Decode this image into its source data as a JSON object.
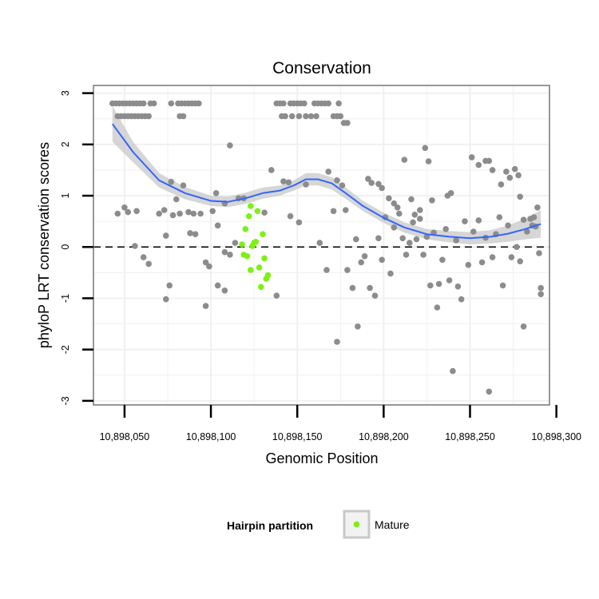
{
  "chart_data": {
    "type": "scatter",
    "title": "Conservation",
    "xlabel": "Genomic Position",
    "ylabel": "phyloP LRT conservation scores",
    "xlim": [
      10898032,
      10898296
    ],
    "ylim": [
      -3.08,
      3.15
    ],
    "x_ticks": [
      10898050,
      10898100,
      10898150,
      10898200,
      10898250,
      10898300
    ],
    "x_tick_labels": [
      "10,898,050",
      "10,898,100",
      "10,898,150",
      "10,898,200",
      "10,898,250",
      "10,898,300"
    ],
    "y_ticks": [
      3,
      2,
      1,
      0,
      -1,
      -2,
      -3
    ],
    "y_tick_labels": [
      "3",
      "2",
      "1",
      "0",
      "-1",
      "-2",
      "-3"
    ],
    "grid": true,
    "reference_line": {
      "y": 0,
      "style": "dashed"
    },
    "legend": {
      "title": "Hairpin partition",
      "entries": [
        {
          "label": "Mature",
          "color": "#7ef018"
        }
      ],
      "position": "bottom"
    },
    "colors": {
      "other": "#8c8c8c",
      "mature": "#7ef018",
      "smooth": "#3366ff",
      "ribbon": "#c8c8c8",
      "panel_border": "#7f7f7f",
      "grid": "#f0f0f0"
    },
    "series": [
      {
        "name": "Other",
        "color": "#8c8c8c",
        "points": [
          [
            10898043,
            2.8
          ],
          [
            10898045,
            2.8
          ],
          [
            10898047,
            2.8
          ],
          [
            10898049,
            2.8
          ],
          [
            10898051,
            2.8
          ],
          [
            10898053,
            2.8
          ],
          [
            10898055,
            2.8
          ],
          [
            10898057,
            2.8
          ],
          [
            10898059,
            2.8
          ],
          [
            10898061,
            2.8
          ],
          [
            10898065,
            2.8
          ],
          [
            10898067,
            2.8
          ],
          [
            10898077,
            2.8
          ],
          [
            10898081,
            2.8
          ],
          [
            10898083,
            2.8
          ],
          [
            10898085,
            2.8
          ],
          [
            10898087,
            2.8
          ],
          [
            10898089,
            2.8
          ],
          [
            10898091,
            2.8
          ],
          [
            10898093,
            2.8
          ],
          [
            10898046,
            2.55
          ],
          [
            10898048,
            2.55
          ],
          [
            10898050,
            2.55
          ],
          [
            10898052,
            2.55
          ],
          [
            10898054,
            2.55
          ],
          [
            10898056,
            2.55
          ],
          [
            10898058,
            2.55
          ],
          [
            10898060,
            2.55
          ],
          [
            10898062,
            2.55
          ],
          [
            10898064,
            2.55
          ],
          [
            10898082,
            2.55
          ],
          [
            10898084,
            2.55
          ],
          [
            10898138,
            2.8
          ],
          [
            10898140,
            2.8
          ],
          [
            10898142,
            2.8
          ],
          [
            10898146,
            2.8
          ],
          [
            10898148,
            2.8
          ],
          [
            10898150,
            2.8
          ],
          [
            10898152,
            2.8
          ],
          [
            10898154,
            2.8
          ],
          [
            10898160,
            2.8
          ],
          [
            10898162,
            2.8
          ],
          [
            10898164,
            2.8
          ],
          [
            10898166,
            2.8
          ],
          [
            10898168,
            2.8
          ],
          [
            10898174,
            2.8
          ],
          [
            10898141,
            2.55
          ],
          [
            10898143,
            2.55
          ],
          [
            10898147,
            2.55
          ],
          [
            10898151,
            2.55
          ],
          [
            10898155,
            2.55
          ],
          [
            10898158,
            2.55
          ],
          [
            10898161,
            2.55
          ],
          [
            10898171,
            2.55
          ],
          [
            10898173,
            2.55
          ],
          [
            10898175,
            2.55
          ],
          [
            10898177,
            2.42
          ],
          [
            10898179,
            2.42
          ],
          [
            10898111,
            1.98
          ],
          [
            10898077,
            1.27
          ],
          [
            10898084,
            1.2
          ],
          [
            10898103,
            1.05
          ],
          [
            10898135,
            1.5
          ],
          [
            10898142,
            1.28
          ],
          [
            10898145,
            1.26
          ],
          [
            10898155,
            1.22
          ],
          [
            10898168,
            1.47
          ],
          [
            10898173,
            1.3
          ],
          [
            10898176,
            1.2
          ],
          [
            10898116,
            0.95
          ],
          [
            10898119,
            0.95
          ],
          [
            10898108,
            0.85
          ],
          [
            10898131,
            0.67
          ],
          [
            10898146,
            0.6
          ],
          [
            10898151,
            0.48
          ],
          [
            10898171,
            0.7
          ],
          [
            10898178,
            0.72
          ],
          [
            10898191,
            1.33
          ],
          [
            10898193,
            1.25
          ],
          [
            10898197,
            1.23
          ],
          [
            10898199,
            1.15
          ],
          [
            10898203,
            0.95
          ],
          [
            10898206,
            0.85
          ],
          [
            10898208,
            0.77
          ],
          [
            10898212,
            1.7
          ],
          [
            10898216,
            0.93
          ],
          [
            10898218,
            0.63
          ],
          [
            10898221,
            0.72
          ],
          [
            10898224,
            1.93
          ],
          [
            10898226,
            1.67
          ],
          [
            10898228,
            0.91
          ],
          [
            10898237,
            1.0
          ],
          [
            10898239,
            1.05
          ],
          [
            10898251,
            1.75
          ],
          [
            10898255,
            1.6
          ],
          [
            10898259,
            1.68
          ],
          [
            10898261,
            1.68
          ],
          [
            10898263,
            1.5
          ],
          [
            10898268,
            1.22
          ],
          [
            10898271,
            1.47
          ],
          [
            10898273,
            1.35
          ],
          [
            10898276,
            1.52
          ],
          [
            10898278,
            1.4
          ],
          [
            10898279,
            0.98
          ],
          [
            10898281,
            0.53
          ],
          [
            10898285,
            0.55
          ],
          [
            10898287,
            0.58
          ],
          [
            10898289,
            0.77
          ],
          [
            10898291,
            -0.8
          ],
          [
            10898046,
            0.65
          ],
          [
            10898050,
            0.77
          ],
          [
            10898052,
            0.68
          ],
          [
            10898057,
            0.7
          ],
          [
            10898070,
            0.65
          ],
          [
            10898073,
            0.72
          ],
          [
            10898078,
            0.62
          ],
          [
            10898080,
            0.93
          ],
          [
            10898082,
            0.65
          ],
          [
            10898087,
            0.68
          ],
          [
            10898090,
            0.65
          ],
          [
            10898094,
            0.65
          ],
          [
            10898101,
            0.7
          ],
          [
            10898104,
            0.42
          ],
          [
            10898056,
            0.02
          ],
          [
            10898061,
            -0.2
          ],
          [
            10898064,
            -0.33
          ],
          [
            10898074,
            0.22
          ],
          [
            10898088,
            0.27
          ],
          [
            10898091,
            0.25
          ],
          [
            10898097,
            -0.3
          ],
          [
            10898099,
            -0.38
          ],
          [
            10898108,
            -0.1
          ],
          [
            10898111,
            -0.15
          ],
          [
            10898114,
            0.08
          ],
          [
            10898076,
            -0.75
          ],
          [
            10898074,
            -1.02
          ],
          [
            10898097,
            -1.15
          ],
          [
            10898104,
            -0.75
          ],
          [
            10898108,
            -0.85
          ],
          [
            10898138,
            -0.95
          ],
          [
            10898163,
            0.08
          ],
          [
            10898167,
            -0.45
          ],
          [
            10898173,
            -1.85
          ],
          [
            10898179,
            -0.45
          ],
          [
            10898182,
            -0.8
          ],
          [
            10898185,
            -1.55
          ],
          [
            10898184,
            0.15
          ],
          [
            10898187,
            -0.3
          ],
          [
            10898189,
            -0.18
          ],
          [
            10898192,
            -0.8
          ],
          [
            10898195,
            -0.95
          ],
          [
            10898197,
            0.17
          ],
          [
            10898199,
            -0.25
          ],
          [
            10898201,
            0.58
          ],
          [
            10898204,
            -0.52
          ],
          [
            10898206,
            0.38
          ],
          [
            10898209,
            0.65
          ],
          [
            10898211,
            0.17
          ],
          [
            10898213,
            -0.15
          ],
          [
            10898215,
            0.08
          ],
          [
            10898217,
            0.48
          ],
          [
            10898219,
            0.15
          ],
          [
            10898221,
            0.55
          ],
          [
            10898223,
            -0.15
          ],
          [
            10898225,
            0.2
          ],
          [
            10898227,
            -0.75
          ],
          [
            10898229,
            0.28
          ],
          [
            10898231,
            -1.18
          ],
          [
            10898232,
            -0.72
          ],
          [
            10898234,
            -0.25
          ],
          [
            10898236,
            0.35
          ],
          [
            10898238,
            -0.65
          ],
          [
            10898240,
            -2.42
          ],
          [
            10898242,
            0.13
          ],
          [
            10898243,
            -0.77
          ],
          [
            10898245,
            -1.02
          ],
          [
            10898247,
            0.5
          ],
          [
            10898249,
            -0.35
          ],
          [
            10898252,
            0.3
          ],
          [
            10898255,
            0.52
          ],
          [
            10898257,
            -0.3
          ],
          [
            10898259,
            0.18
          ],
          [
            10898261,
            -2.82
          ],
          [
            10898263,
            -0.2
          ],
          [
            10898265,
            0.25
          ],
          [
            10898267,
            0.58
          ],
          [
            10898269,
            -0.75
          ],
          [
            10898272,
            0.42
          ],
          [
            10898274,
            -0.2
          ],
          [
            10898277,
            0.0
          ],
          [
            10898279,
            -0.28
          ],
          [
            10898281,
            -1.55
          ],
          [
            10898283,
            0.3
          ],
          [
            10898286,
            0.42
          ],
          [
            10898288,
            0.4
          ],
          [
            10898290,
            -0.12
          ],
          [
            10898291,
            -0.92
          ]
        ]
      },
      {
        "name": "Mature",
        "color": "#7ef018",
        "points": [
          [
            10898118,
            0.05
          ],
          [
            10898119,
            -0.15
          ],
          [
            10898120,
            0.35
          ],
          [
            10898121,
            -0.18
          ],
          [
            10898122,
            0.6
          ],
          [
            10898123,
            0.8
          ],
          [
            10898124,
            0.02
          ],
          [
            10898125,
            0.08
          ],
          [
            10898126,
            0.1
          ],
          [
            10898127,
            0.7
          ],
          [
            10898128,
            -0.4
          ],
          [
            10898129,
            -0.78
          ],
          [
            10898130,
            0.25
          ],
          [
            10898131,
            -0.22
          ],
          [
            10898132,
            -0.62
          ],
          [
            10898133,
            -0.55
          ],
          [
            10898123,
            -0.45
          ]
        ]
      }
    ],
    "smooth": {
      "method": "loess",
      "color": "#3366ff",
      "fit": [
        [
          10898043,
          2.4
        ],
        [
          10898055,
          1.85
        ],
        [
          10898070,
          1.3
        ],
        [
          10898085,
          1.05
        ],
        [
          10898100,
          0.9
        ],
        [
          10898110,
          0.88
        ],
        [
          10898120,
          0.95
        ],
        [
          10898130,
          1.05
        ],
        [
          10898140,
          1.1
        ],
        [
          10898148,
          1.2
        ],
        [
          10898155,
          1.32
        ],
        [
          10898162,
          1.32
        ],
        [
          10898170,
          1.24
        ],
        [
          10898178,
          1.05
        ],
        [
          10898188,
          0.8
        ],
        [
          10898200,
          0.57
        ],
        [
          10898212,
          0.38
        ],
        [
          10898225,
          0.25
        ],
        [
          10898238,
          0.2
        ],
        [
          10898250,
          0.17
        ],
        [
          10898262,
          0.2
        ],
        [
          10898272,
          0.26
        ],
        [
          10898282,
          0.35
        ],
        [
          10898291,
          0.45
        ]
      ],
      "lower": [
        [
          10898043,
          2.05
        ],
        [
          10898055,
          1.65
        ],
        [
          10898070,
          1.16
        ],
        [
          10898085,
          0.93
        ],
        [
          10898100,
          0.8
        ],
        [
          10898110,
          0.78
        ],
        [
          10898120,
          0.84
        ],
        [
          10898130,
          0.94
        ],
        [
          10898140,
          1.0
        ],
        [
          10898148,
          1.1
        ],
        [
          10898155,
          1.2
        ],
        [
          10898162,
          1.2
        ],
        [
          10898170,
          1.12
        ],
        [
          10898178,
          0.94
        ],
        [
          10898188,
          0.7
        ],
        [
          10898200,
          0.47
        ],
        [
          10898212,
          0.28
        ],
        [
          10898225,
          0.15
        ],
        [
          10898238,
          0.09
        ],
        [
          10898250,
          0.05
        ],
        [
          10898262,
          0.07
        ],
        [
          10898272,
          0.1
        ],
        [
          10898282,
          0.15
        ],
        [
          10898291,
          0.18
        ]
      ],
      "upper": [
        [
          10898043,
          2.75
        ],
        [
          10898055,
          2.05
        ],
        [
          10898070,
          1.44
        ],
        [
          10898085,
          1.17
        ],
        [
          10898100,
          1.0
        ],
        [
          10898110,
          0.98
        ],
        [
          10898120,
          1.06
        ],
        [
          10898130,
          1.16
        ],
        [
          10898140,
          1.2
        ],
        [
          10898148,
          1.3
        ],
        [
          10898155,
          1.44
        ],
        [
          10898162,
          1.44
        ],
        [
          10898170,
          1.36
        ],
        [
          10898178,
          1.16
        ],
        [
          10898188,
          0.9
        ],
        [
          10898200,
          0.67
        ],
        [
          10898212,
          0.48
        ],
        [
          10898225,
          0.35
        ],
        [
          10898238,
          0.31
        ],
        [
          10898250,
          0.29
        ],
        [
          10898262,
          0.33
        ],
        [
          10898272,
          0.42
        ],
        [
          10898282,
          0.55
        ],
        [
          10898291,
          0.72
        ]
      ]
    }
  }
}
